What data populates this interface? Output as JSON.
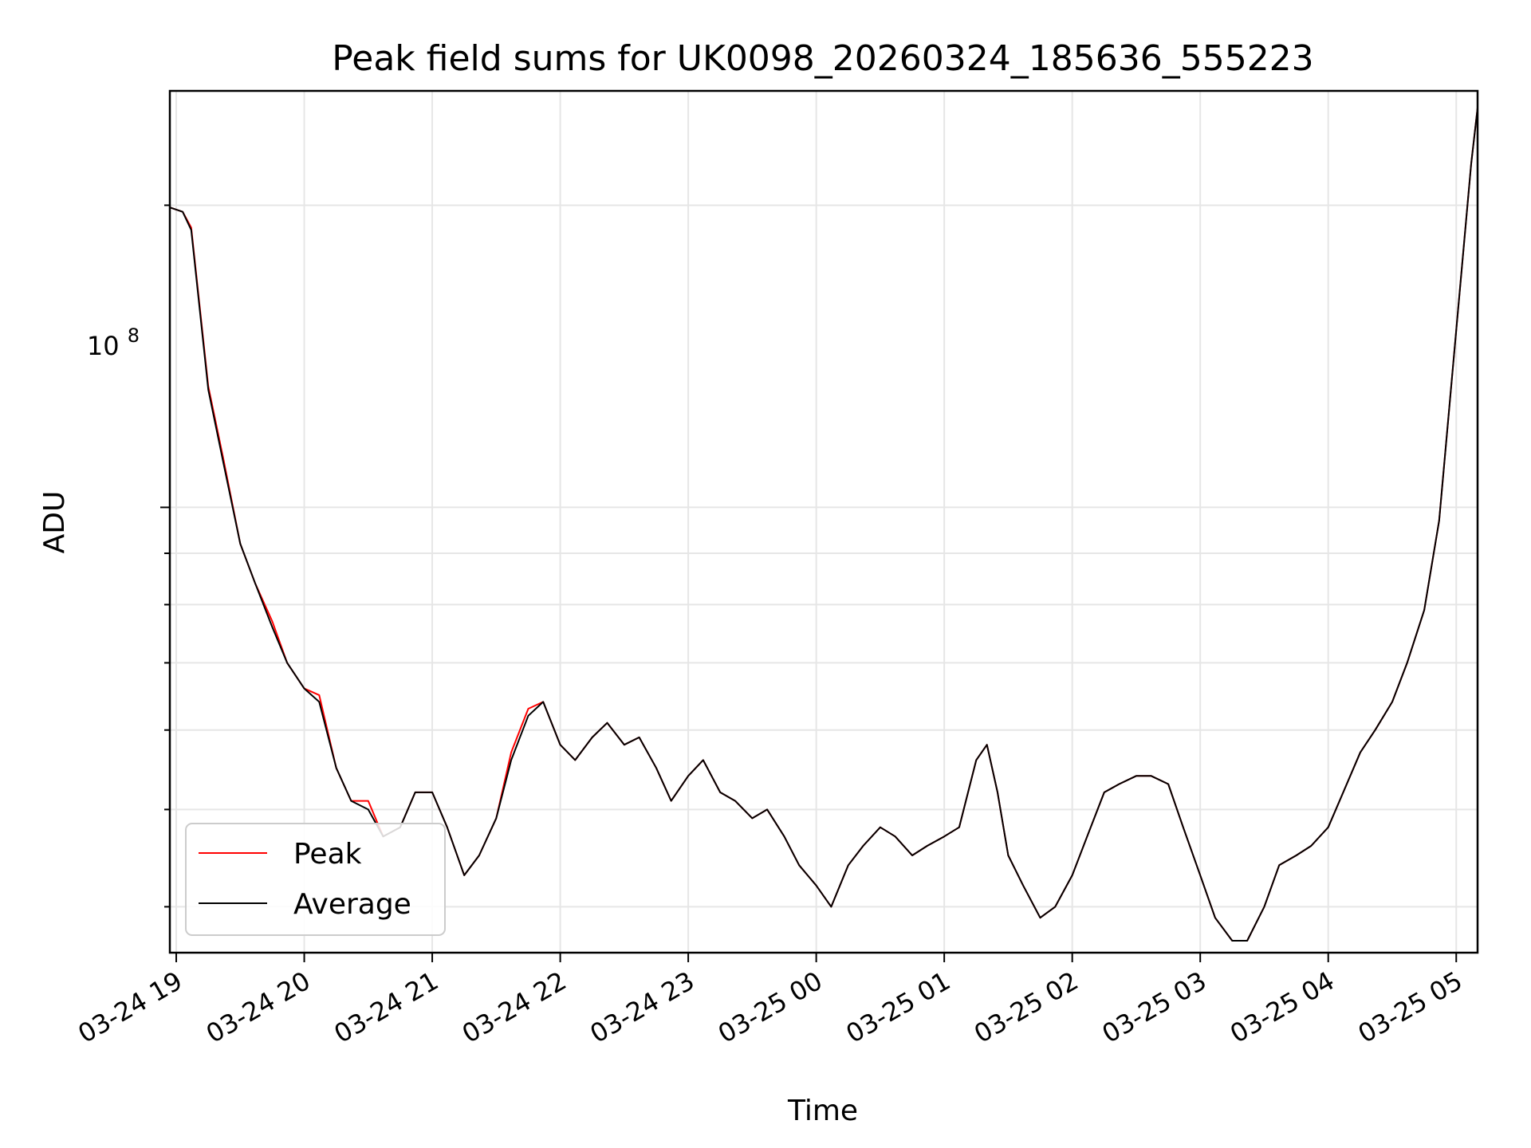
{
  "chart_data": {
    "type": "line",
    "title": "Peak field sums for UK0098_20260324_185636_555223",
    "xlabel": "Time",
    "ylabel": "ADU",
    "y_scale": "log",
    "xlim": [
      "2026-03-24 18:57",
      "2026-03-25 05:10"
    ],
    "ylim": [
      36000000,
      260000000
    ],
    "x_ticks": [
      "03-24 19",
      "03-24 20",
      "03-24 21",
      "03-24 22",
      "03-24 23",
      "03-25 00",
      "03-25 01",
      "03-25 02",
      "03-25 03",
      "03-25 04",
      "03-25 05"
    ],
    "y_tick_major": {
      "base": "10",
      "exp": "8"
    },
    "grid": true,
    "legend_position": "lower-left",
    "colors": {
      "Peak": "#ff0000",
      "Average": "#000000"
    },
    "x": [
      "18:57",
      "19:03",
      "19:07",
      "19:15",
      "19:22",
      "19:30",
      "19:37",
      "19:45",
      "19:52",
      "20:00",
      "20:07",
      "20:15",
      "20:22",
      "20:30",
      "20:37",
      "20:45",
      "20:52",
      "21:00",
      "21:07",
      "21:15",
      "21:22",
      "21:30",
      "21:37",
      "21:45",
      "21:52",
      "22:00",
      "22:07",
      "22:15",
      "22:22",
      "22:30",
      "22:37",
      "22:45",
      "22:52",
      "23:00",
      "23:07",
      "23:15",
      "23:22",
      "23:30",
      "23:37",
      "23:45",
      "23:52",
      "00:00",
      "00:07",
      "00:15",
      "00:22",
      "00:30",
      "00:37",
      "00:45",
      "00:52",
      "01:00",
      "01:07",
      "01:15",
      "01:20",
      "01:25",
      "01:30",
      "01:37",
      "01:45",
      "01:52",
      "02:00",
      "02:07",
      "02:15",
      "02:22",
      "02:30",
      "02:37",
      "02:45",
      "02:52",
      "03:00",
      "03:07",
      "03:15",
      "03:22",
      "03:30",
      "03:37",
      "03:45",
      "03:52",
      "04:00",
      "04:07",
      "04:15",
      "04:22",
      "04:30",
      "04:37",
      "04:45",
      "04:52",
      "05:00",
      "05:07",
      "05:10"
    ],
    "series": [
      {
        "name": "Peak",
        "values": [
          199000000,
          197000000,
          190000000,
          132000000,
          112000000,
          92000000,
          84000000,
          77000000,
          70000000,
          66000000,
          65000000,
          55000000,
          51000000,
          51000000,
          47000000,
          48000000,
          52000000,
          52000000,
          48000000,
          43000000,
          45000000,
          49000000,
          57000000,
          63000000,
          64000000,
          58000000,
          56000000,
          59000000,
          61000000,
          58000000,
          59000000,
          55000000,
          51000000,
          54000000,
          56000000,
          52000000,
          51000000,
          49000000,
          50000000,
          47000000,
          44000000,
          42000000,
          40000000,
          44000000,
          46000000,
          48000000,
          47000000,
          45000000,
          46000000,
          47000000,
          48000000,
          56000000,
          58000000,
          52000000,
          45000000,
          42000000,
          39000000,
          40000000,
          43000000,
          47000000,
          52000000,
          53000000,
          54000000,
          54000000,
          53000000,
          48000000,
          43000000,
          39000000,
          37000000,
          37000000,
          40000000,
          44000000,
          45000000,
          46000000,
          48000000,
          52000000,
          57000000,
          60000000,
          64000000,
          70000000,
          79000000,
          97000000,
          150000000,
          220000000,
          250000000
        ]
      },
      {
        "name": "Average",
        "values": [
          199000000,
          197000000,
          189000000,
          131000000,
          111000000,
          92000000,
          84000000,
          76000000,
          70000000,
          66000000,
          64000000,
          55000000,
          51000000,
          50000000,
          47000000,
          48000000,
          52000000,
          52000000,
          48000000,
          43000000,
          45000000,
          49000000,
          56000000,
          62000000,
          64000000,
          58000000,
          56000000,
          59000000,
          61000000,
          58000000,
          59000000,
          55000000,
          51000000,
          54000000,
          56000000,
          52000000,
          51000000,
          49000000,
          50000000,
          47000000,
          44000000,
          42000000,
          40000000,
          44000000,
          46000000,
          48000000,
          47000000,
          45000000,
          46000000,
          47000000,
          48000000,
          56000000,
          58000000,
          52000000,
          45000000,
          42000000,
          39000000,
          40000000,
          43000000,
          47000000,
          52000000,
          53000000,
          54000000,
          54000000,
          53000000,
          48000000,
          43000000,
          39000000,
          37000000,
          37000000,
          40000000,
          44000000,
          45000000,
          46000000,
          48000000,
          52000000,
          57000000,
          60000000,
          64000000,
          70000000,
          79000000,
          97000000,
          150000000,
          220000000,
          250000000
        ]
      }
    ]
  }
}
